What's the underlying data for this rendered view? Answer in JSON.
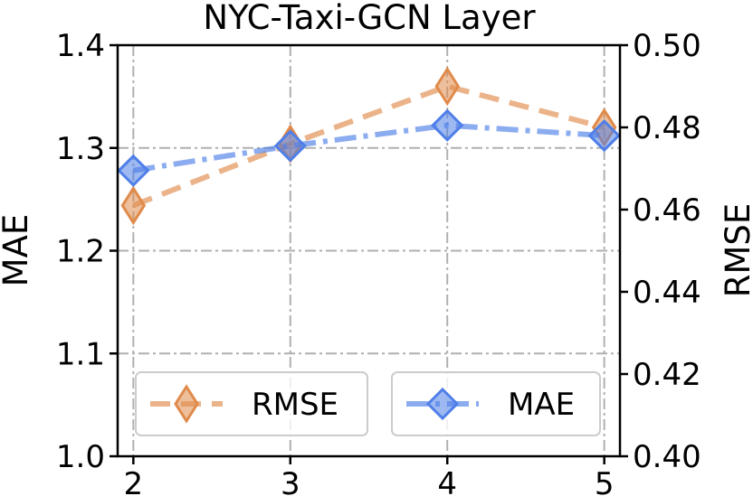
{
  "chart_data": {
    "type": "line",
    "title": "NYC-Taxi-GCN Layer",
    "x": [
      2,
      3,
      4,
      5
    ],
    "xticks": [
      "2",
      "3",
      "4",
      "5"
    ],
    "xlim": [
      1.9,
      5.1
    ],
    "left_axis": {
      "label": "MAE",
      "ylim": [
        1.0,
        1.4
      ],
      "ticks": [
        "1.0",
        "1.1",
        "1.2",
        "1.3",
        "1.4"
      ],
      "tick_values": [
        1.0,
        1.1,
        1.2,
        1.3,
        1.4
      ]
    },
    "right_axis": {
      "label": "RMSE",
      "ylim": [
        0.4,
        0.5
      ],
      "ticks": [
        "0.40",
        "0.42",
        "0.44",
        "0.46",
        "0.48",
        "0.50"
      ],
      "tick_values": [
        0.4,
        0.42,
        0.44,
        0.46,
        0.48,
        0.5
      ]
    },
    "grid": true,
    "series": [
      {
        "name": "RMSE",
        "axis": "right",
        "values": [
          0.461,
          0.476,
          0.49,
          0.48
        ],
        "color": "#e08a4a",
        "linestyle": "dashed",
        "marker": "thin-diamond"
      },
      {
        "name": "MAE",
        "axis": "left",
        "values": [
          1.278,
          1.302,
          1.322,
          1.312
        ],
        "color": "#4f7fe8",
        "linestyle": "dashdot",
        "marker": "diamond"
      }
    ],
    "legend": {
      "placement": "bottom",
      "entries": [
        "RMSE",
        "MAE"
      ]
    }
  }
}
